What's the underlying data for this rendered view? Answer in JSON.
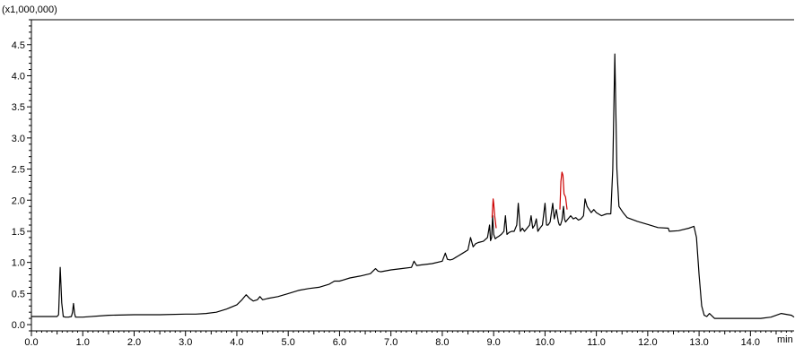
{
  "chart_data": {
    "type": "line",
    "title": "",
    "xlabel": "",
    "ylabel": "",
    "y_multiplier_label": "(x1,000,000)",
    "x_unit_label": "min",
    "xlim": [
      0.0,
      14.85
    ],
    "ylim": [
      -0.1,
      4.9
    ],
    "grid": false,
    "x_ticks": [
      0,
      1,
      2,
      3,
      4,
      5,
      6,
      7,
      8,
      9,
      10,
      11,
      12,
      13,
      14
    ],
    "x_tick_labels": [
      "0.0",
      "1.0",
      "2.0",
      "3.0",
      "4.0",
      "5.0",
      "6.0",
      "7.0",
      "8.0",
      "9.0",
      "10.0",
      "11.0",
      "12.0",
      "13.0",
      "14.0"
    ],
    "y_ticks": [
      0,
      0.5,
      1.0,
      1.5,
      2.0,
      2.5,
      3.0,
      3.5,
      4.0,
      4.5
    ],
    "y_tick_labels": [
      "0.0",
      "0.5",
      "1.0",
      "1.5",
      "2.0",
      "2.5",
      "3.0",
      "3.5",
      "4.0",
      "4.5"
    ],
    "series": [
      {
        "color": "#000000",
        "x": [
          0.0,
          0.5,
          0.53,
          0.56,
          0.59,
          0.62,
          0.66,
          0.72,
          0.78,
          0.8,
          0.82,
          0.84,
          0.86,
          0.9,
          1.0,
          1.5,
          2.0,
          2.5,
          3.0,
          3.2,
          3.4,
          3.6,
          3.8,
          4.0,
          4.1,
          4.18,
          4.25,
          4.32,
          4.4,
          4.45,
          4.5,
          4.6,
          4.8,
          5.0,
          5.2,
          5.4,
          5.6,
          5.8,
          5.9,
          6.0,
          6.2,
          6.4,
          6.6,
          6.7,
          6.75,
          6.8,
          7.0,
          7.2,
          7.4,
          7.45,
          7.5,
          7.6,
          7.8,
          8.0,
          8.06,
          8.1,
          8.15,
          8.2,
          8.3,
          8.4,
          8.5,
          8.55,
          8.6,
          8.65,
          8.7,
          8.8,
          8.88,
          8.92,
          8.94,
          8.96,
          8.98,
          9.0,
          9.03,
          9.06,
          9.1,
          9.15,
          9.2,
          9.23,
          9.26,
          9.3,
          9.35,
          9.4,
          9.45,
          9.48,
          9.52,
          9.56,
          9.6,
          9.65,
          9.7,
          9.73,
          9.76,
          9.8,
          9.83,
          9.86,
          9.9,
          9.95,
          10.0,
          10.03,
          10.06,
          10.1,
          10.15,
          10.18,
          10.22,
          10.26,
          10.28,
          10.3,
          10.33,
          10.36,
          10.38,
          10.4,
          10.45,
          10.5,
          10.55,
          10.6,
          10.65,
          10.7,
          10.75,
          10.78,
          10.82,
          10.86,
          10.9,
          10.95,
          11.0,
          11.1,
          11.2,
          11.28,
          11.32,
          11.36,
          11.4,
          11.44,
          11.48,
          11.52,
          11.6,
          11.8,
          12.0,
          12.2,
          12.4,
          12.42,
          12.6,
          12.8,
          12.9,
          12.95,
          13.0,
          13.05,
          13.1,
          13.15,
          13.2,
          13.3,
          13.5,
          13.8,
          14.0,
          14.2,
          14.4,
          14.6,
          14.8,
          14.85
        ],
        "y": [
          0.13,
          0.13,
          0.16,
          0.92,
          0.35,
          0.13,
          0.12,
          0.12,
          0.13,
          0.2,
          0.34,
          0.18,
          0.12,
          0.12,
          0.12,
          0.15,
          0.16,
          0.16,
          0.17,
          0.17,
          0.18,
          0.2,
          0.25,
          0.32,
          0.4,
          0.48,
          0.42,
          0.38,
          0.4,
          0.45,
          0.4,
          0.42,
          0.45,
          0.5,
          0.55,
          0.58,
          0.6,
          0.65,
          0.7,
          0.7,
          0.75,
          0.78,
          0.82,
          0.9,
          0.86,
          0.85,
          0.88,
          0.9,
          0.92,
          1.02,
          0.95,
          0.96,
          0.98,
          1.02,
          1.15,
          1.05,
          1.04,
          1.05,
          1.1,
          1.15,
          1.2,
          1.4,
          1.25,
          1.3,
          1.32,
          1.34,
          1.4,
          1.6,
          1.35,
          1.4,
          1.75,
          1.45,
          1.38,
          1.4,
          1.42,
          1.45,
          1.5,
          1.75,
          1.45,
          1.48,
          1.5,
          1.5,
          1.6,
          1.95,
          1.5,
          1.55,
          1.5,
          1.55,
          1.6,
          1.75,
          1.55,
          1.6,
          1.7,
          1.5,
          1.55,
          1.6,
          1.95,
          1.6,
          1.6,
          1.65,
          1.95,
          1.7,
          1.85,
          1.65,
          1.6,
          1.6,
          1.68,
          1.9,
          1.7,
          1.65,
          1.7,
          1.75,
          1.7,
          1.72,
          1.68,
          1.7,
          1.75,
          2.02,
          1.9,
          1.85,
          1.8,
          1.85,
          1.8,
          1.75,
          1.78,
          1.78,
          2.5,
          4.35,
          2.5,
          1.9,
          1.85,
          1.8,
          1.72,
          1.66,
          1.61,
          1.56,
          1.55,
          1.5,
          1.51,
          1.55,
          1.58,
          1.4,
          0.8,
          0.3,
          0.15,
          0.13,
          0.18,
          0.1,
          0.1,
          0.1,
          0.1,
          0.1,
          0.12,
          0.18,
          0.15,
          0.12
        ]
      },
      {
        "color": "#cc0000",
        "x": [
          8.97,
          8.99,
          9.0,
          9.02,
          9.05
        ],
        "y": [
          1.72,
          2.02,
          1.95,
          1.75,
          1.55
        ]
      },
      {
        "color": "#cc0000",
        "x": [
          10.29,
          10.31,
          10.33,
          10.35,
          10.37,
          10.4,
          10.43
        ],
        "y": [
          1.85,
          2.3,
          2.45,
          2.4,
          2.1,
          2.05,
          1.85
        ]
      }
    ]
  }
}
